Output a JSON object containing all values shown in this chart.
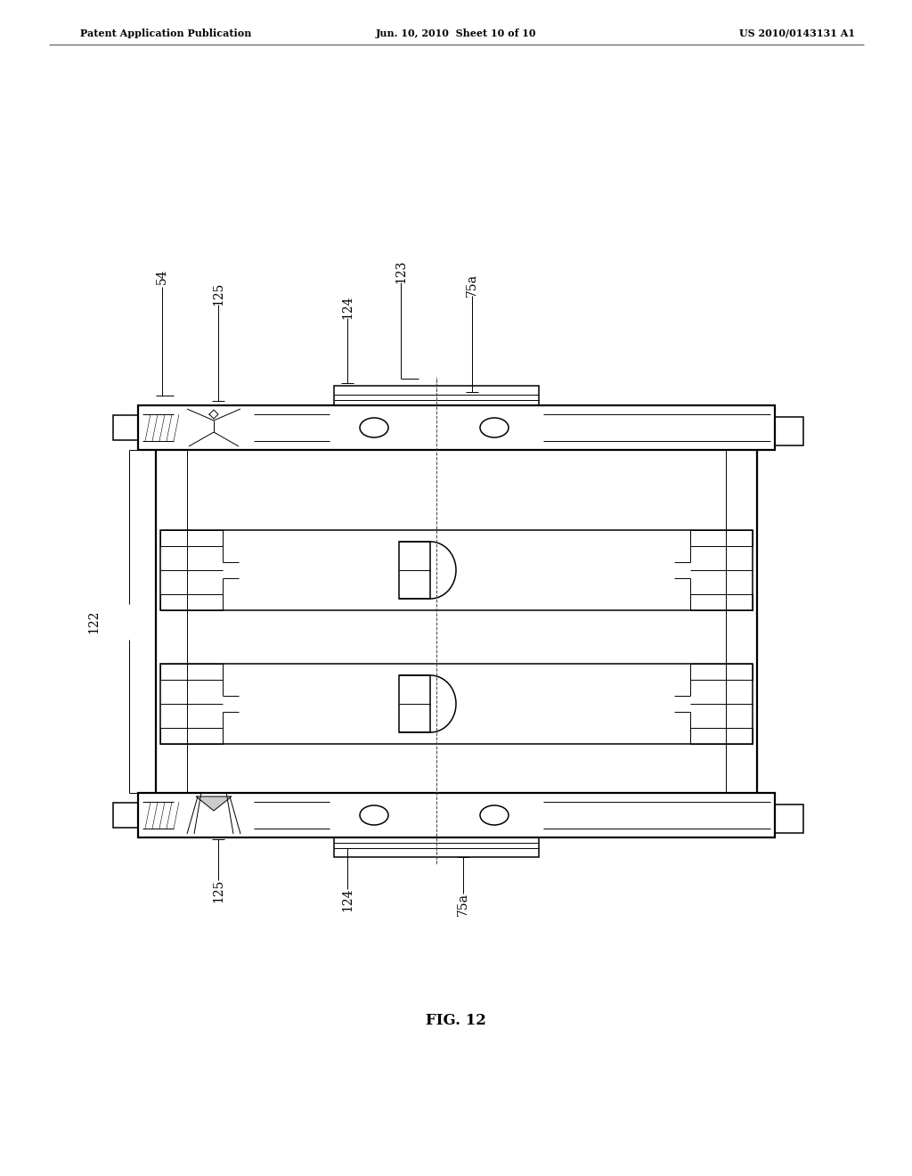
{
  "title_left": "Patent Application Publication",
  "title_center": "Jun. 10, 2010  Sheet 10 of 10",
  "title_right": "US 2010/0143131 A1",
  "fig_label": "FIG. 12",
  "background_color": "#ffffff",
  "line_color": "#000000",
  "lw_thin": 0.7,
  "lw_med": 1.1,
  "lw_thick": 1.6,
  "label_fontsize": 10,
  "header_fontsize": 8
}
